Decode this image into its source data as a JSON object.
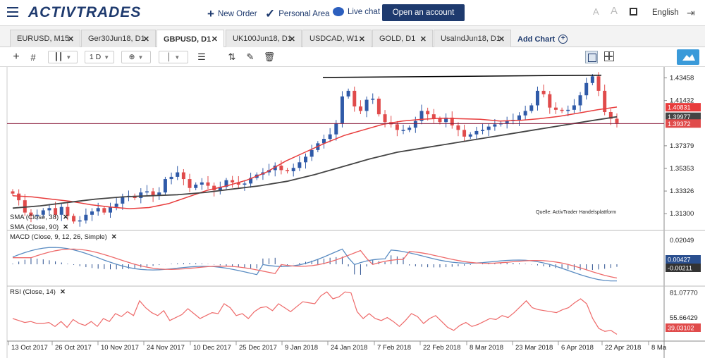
{
  "topbar": {
    "logo": "ACTIVTRADES",
    "new_order": "New Order",
    "personal_area": "Personal Area",
    "live_chat": "Live chat",
    "open_account": "Open an account",
    "language": "English",
    "font_small": "A",
    "font_large": "A"
  },
  "tabs": [
    {
      "label": "EURUSD, M15"
    },
    {
      "label": "Ger30Jun18, D1"
    },
    {
      "label": "GBPUSD, D1"
    },
    {
      "label": "UK100Jun18, D1"
    },
    {
      "label": "USDCAD, W1"
    },
    {
      "label": "GOLD, D1"
    },
    {
      "label": "UsaIndJun18, D1"
    }
  ],
  "add_chart": "Add Chart",
  "toolbar": {
    "period": "1 D"
  },
  "colors": {
    "bull": "#2f5aa8",
    "bear": "#e04b4b",
    "sma_fast": "#e83c3c",
    "sma_slow": "#444444",
    "macd_line": "#5a8cc2",
    "macd_signal": "#ee6a6a",
    "rsi": "#ee6a6a",
    "horizontal_line": "#8a1a3a",
    "trendline": "#000000"
  },
  "indicators": {
    "sma1": "SMA (Close, 38)",
    "sma2": "SMA (Close, 90)",
    "macd": "MACD (Close, 9, 12, 26, Simple)",
    "rsi": "RSI (Close, 14)"
  },
  "watermark": "Quelle: ActivTrader Handelsplattform",
  "chart_data": [
    {
      "type": "candlestick",
      "symbol": "GBPUSD",
      "timeframe": "D1",
      "y_ticks": [
        "1.43458",
        "1.41432",
        "1.37379",
        "1.35353",
        "1.33326",
        "1.31300"
      ],
      "price_labels": {
        "sma_fast": "1.40831",
        "sma_slow": "1.39977",
        "last": "1.39372"
      },
      "ylim": [
        1.3005,
        1.4406
      ],
      "ohlc_close_approx": [
        1.331,
        1.325,
        1.314,
        1.311,
        1.312,
        1.316,
        1.318,
        1.312,
        1.319,
        1.311,
        1.306,
        1.307,
        1.312,
        1.315,
        1.318,
        1.314,
        1.319,
        1.322,
        1.328,
        1.329,
        1.327,
        1.332,
        1.333,
        1.329,
        1.332,
        1.344,
        1.346,
        1.35,
        1.344,
        1.336,
        1.339,
        1.341,
        1.338,
        1.334,
        1.337,
        1.343,
        1.341,
        1.339,
        1.34,
        1.345,
        1.348,
        1.35,
        1.352,
        1.356,
        1.352,
        1.351,
        1.354,
        1.359,
        1.364,
        1.37,
        1.376,
        1.38,
        1.384,
        1.394,
        1.418,
        1.423,
        1.409,
        1.405,
        1.415,
        1.416,
        1.402,
        1.395,
        1.393,
        1.388,
        1.388,
        1.39,
        1.396,
        1.405,
        1.402,
        1.398,
        1.395,
        1.399,
        1.392,
        1.388,
        1.382,
        1.384,
        1.387,
        1.388,
        1.391,
        1.393,
        1.394,
        1.396,
        1.397,
        1.401,
        1.405,
        1.41,
        1.423,
        1.42,
        1.408,
        1.406,
        1.405,
        1.406,
        1.41,
        1.419,
        1.43,
        1.436,
        1.423,
        1.404,
        1.398,
        1.394
      ],
      "sma_fast_approx": [
        1.329,
        1.328,
        1.326,
        1.324,
        1.321,
        1.319,
        1.3175,
        1.3185,
        1.322,
        1.328,
        1.334,
        1.338,
        1.343,
        1.35,
        1.36,
        1.368,
        1.376,
        1.383,
        1.388,
        1.393,
        1.396,
        1.3975,
        1.3985,
        1.398,
        1.3975,
        1.396,
        1.3965,
        1.398,
        1.4,
        1.403,
        1.406,
        1.4085
      ],
      "sma_slow_approx": [
        1.318,
        1.32,
        1.323,
        1.326,
        1.328,
        1.329,
        1.33,
        1.332,
        1.335,
        1.338,
        1.342,
        1.348,
        1.355,
        1.362,
        1.368,
        1.372,
        1.376,
        1.38,
        1.384,
        1.388,
        1.392,
        1.396,
        1.3998
      ],
      "horizontal_line": 1.3937,
      "trendline": [
        1.435,
        1.437
      ]
    },
    {
      "type": "line",
      "name": "MACD",
      "y_ticks": [
        "0.02049"
      ],
      "price_labels": {
        "macd": "0.00427",
        "signal": "-0.00211"
      }
    },
    {
      "type": "line",
      "name": "RSI",
      "y_ticks": [
        "81.07770",
        "55.66429"
      ],
      "price_labels": {
        "last": "39.03102"
      },
      "values_approx": [
        55,
        53,
        51,
        52,
        50,
        50,
        51,
        47,
        52,
        46,
        54,
        50,
        48,
        52,
        47,
        55,
        52,
        60,
        57,
        62,
        58,
        73,
        66,
        61,
        58,
        63,
        53,
        56,
        59,
        65,
        60,
        55,
        58,
        61,
        60,
        70,
        66,
        58,
        60,
        55,
        62,
        66,
        67,
        63,
        70,
        66,
        62,
        67,
        72,
        71,
        70,
        78,
        82,
        75,
        77,
        82,
        81,
        62,
        55,
        60,
        55,
        53,
        56,
        52,
        47,
        53,
        60,
        57,
        50,
        55,
        58,
        52,
        46,
        43,
        48,
        51,
        47,
        49,
        52,
        55,
        54,
        58,
        56,
        61,
        67,
        73,
        66,
        64,
        63,
        62,
        61,
        64,
        66,
        71,
        75,
        70,
        55,
        45,
        42,
        43,
        39
      ]
    }
  ],
  "x_ticks": [
    "13 Oct 2017",
    "26 Oct 2017",
    "10 Nov 2017",
    "24 Nov 2017",
    "10 Dec 2017",
    "25 Dec 2017",
    "9 Jan 2018",
    "24 Jan 2018",
    "7 Feb 2018",
    "22 Feb 2018",
    "8 Mar 2018",
    "23 Mar 2018",
    "6 Apr 2018",
    "22 Apr 2018",
    "8 Ma"
  ]
}
